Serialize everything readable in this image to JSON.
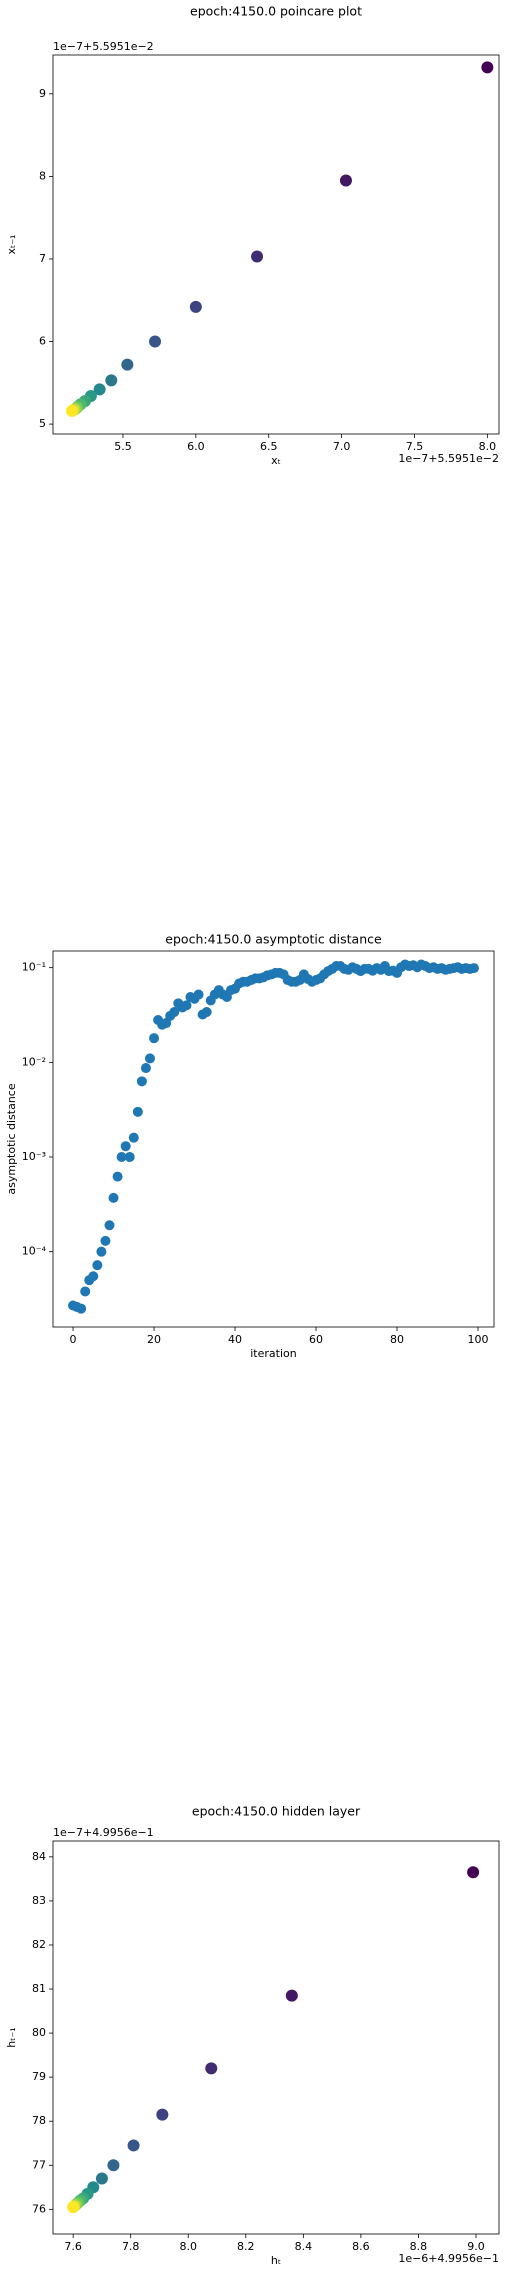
{
  "chart_data": [
    {
      "type": "scatter",
      "title": "epoch:4150.0 poincare plot",
      "x_label": "xₜ",
      "y_label": "xₜ₋₁",
      "x_offset": "1e−7+5.5951e−2",
      "y_offset": "1e−7+5.5951e−2",
      "x": [
        8.0,
        7.03,
        6.42,
        6.0,
        5.72,
        5.53,
        5.42,
        5.34,
        5.28,
        5.24,
        5.21,
        5.19,
        5.18,
        5.17,
        5.16,
        5.15
      ],
      "values": [
        9.32,
        7.95,
        7.03,
        6.42,
        6.0,
        5.72,
        5.53,
        5.42,
        5.34,
        5.28,
        5.24,
        5.21,
        5.19,
        5.18,
        5.17,
        5.16
      ],
      "colormap": [
        "#440154",
        "#3b528b",
        "#21918c",
        "#5ec962",
        "#fde725"
      ],
      "xlim": [
        5.02,
        8.08
      ],
      "ylim": [
        4.88,
        9.47
      ],
      "xticks": [
        5.5,
        {
          "value": 6,
          "label": "6.0"
        },
        6.5,
        {
          "value": 7,
          "label": "7.0"
        },
        7.5,
        {
          "value": 8,
          "label": "8.0"
        }
      ],
      "yticks": [
        5,
        6,
        7,
        8,
        9
      ]
    },
    {
      "type": "scatter",
      "title": "epoch:4150.0 asymptotic distance",
      "x_label": "iteration",
      "y_label": "asymptotic distance",
      "x": [
        0,
        1,
        2,
        3,
        4,
        5,
        6,
        7,
        8,
        9,
        10,
        11,
        12,
        13,
        14,
        15,
        16,
        17,
        18,
        19,
        20,
        21,
        22,
        23,
        24,
        25,
        26,
        27,
        28,
        29,
        30,
        31,
        32,
        33,
        34,
        35,
        36,
        37,
        38,
        39,
        40,
        41,
        42,
        43,
        44,
        45,
        46,
        47,
        48,
        49,
        50,
        51,
        52,
        53,
        54,
        55,
        56,
        57,
        58,
        59,
        60,
        61,
        62,
        63,
        64,
        65,
        66,
        67,
        68,
        69,
        70,
        71,
        72,
        73,
        74,
        75,
        76,
        77,
        78,
        79,
        80,
        81,
        82,
        83,
        84,
        85,
        86,
        87,
        88,
        89,
        90,
        91,
        92,
        93,
        94,
        95,
        96,
        97,
        98,
        99
      ],
      "values": [
        2.7e-05,
        2.6e-05,
        2.5e-05,
        3.8e-05,
        5e-05,
        5.5e-05,
        7.2e-05,
        0.0001,
        0.00013,
        0.00019,
        0.00037,
        0.00062,
        0.001,
        0.0013,
        0.001,
        0.0016,
        0.003,
        0.0063,
        0.0087,
        0.011,
        0.018,
        0.028,
        0.025,
        0.026,
        0.031,
        0.034,
        0.042,
        0.038,
        0.04,
        0.049,
        0.047,
        0.052,
        0.032,
        0.034,
        0.045,
        0.052,
        0.058,
        0.052,
        0.049,
        0.058,
        0.06,
        0.068,
        0.071,
        0.071,
        0.074,
        0.077,
        0.077,
        0.079,
        0.083,
        0.085,
        0.088,
        0.088,
        0.085,
        0.074,
        0.071,
        0.071,
        0.074,
        0.085,
        0.076,
        0.071,
        0.074,
        0.077,
        0.085,
        0.092,
        0.097,
        0.104,
        0.104,
        0.097,
        0.095,
        0.101,
        0.097,
        0.092,
        0.097,
        0.097,
        0.093,
        0.099,
        0.095,
        0.104,
        0.092,
        0.093,
        0.088,
        0.101,
        0.108,
        0.104,
        0.106,
        0.101,
        0.108,
        0.104,
        0.099,
        0.101,
        0.097,
        0.099,
        0.095,
        0.097,
        0.099,
        0.101,
        0.097,
        0.099,
        0.097,
        0.099
      ],
      "color": "#1f77b4",
      "yscale": "log",
      "xlim": [
        -4.95,
        103.95
      ],
      "ylim": [
        1.6e-05,
        0.15
      ],
      "xticks": [
        0,
        20,
        40,
        60,
        80,
        100
      ],
      "yticks": [
        {
          "value": 0.0001,
          "label": "10⁻⁴"
        },
        {
          "value": 0.001,
          "label": "10⁻³"
        },
        {
          "value": 0.01,
          "label": "10⁻²"
        },
        {
          "value": 0.1,
          "label": "10⁻¹"
        }
      ]
    },
    {
      "type": "scatter",
      "title": "epoch:4150.0 hidden layer",
      "x_label": "hₜ",
      "y_label": "hₜ₋₁",
      "x_offset": "1e−6+4.9956e−1",
      "y_offset": "1e−7+4.9956e−1",
      "x": [
        8.99,
        8.36,
        8.08,
        7.91,
        7.81,
        7.74,
        7.7,
        7.67,
        7.65,
        7.635,
        7.625,
        7.617,
        7.612,
        7.607,
        7.603,
        7.6
      ],
      "values": [
        83.65,
        80.85,
        79.2,
        78.15,
        77.45,
        77.0,
        76.7,
        76.5,
        76.35,
        76.25,
        76.2,
        76.15,
        76.12,
        76.09,
        76.07,
        76.05
      ],
      "colormap": [
        "#440154",
        "#3b528b",
        "#21918c",
        "#5ec962",
        "#fde725"
      ],
      "xlim": [
        7.53,
        9.08
      ],
      "ylim": [
        75.44,
        84.36
      ],
      "xticks": [
        7.6,
        7.8,
        {
          "value": 8,
          "label": "8.0"
        },
        8.2,
        8.4,
        8.6,
        8.8,
        {
          "value": 9,
          "label": "9.0"
        }
      ],
      "yticks": [
        76,
        77,
        78,
        79,
        80,
        81,
        82,
        83,
        84
      ]
    }
  ]
}
